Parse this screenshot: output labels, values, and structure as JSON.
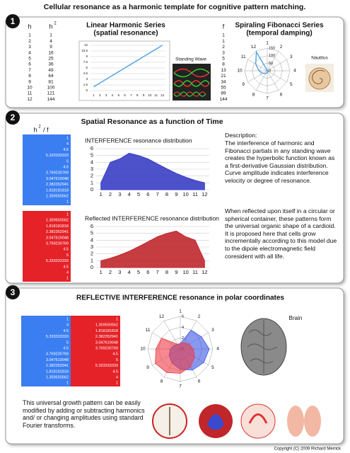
{
  "title": "Cellular resonance as a harmonic template for cognitive pattern matching.",
  "section_numbers": [
    1,
    2,
    3
  ],
  "panel1": {
    "h_header": "h",
    "h2_header": "h",
    "h2_sup": "2",
    "h": [
      1,
      2,
      3,
      4,
      5,
      6,
      7,
      8,
      9,
      10,
      11,
      12
    ],
    "h2": [
      1,
      4,
      9,
      16,
      25,
      36,
      49,
      64,
      81,
      100,
      121,
      144
    ],
    "f_header": "f",
    "f": [
      1,
      1,
      2,
      3,
      5,
      8,
      13,
      21,
      34,
      55,
      89,
      144
    ],
    "standing_wave": "Standing Wave",
    "nautilus": "Nautilus"
  },
  "panel2": {
    "title": "Spatial Resonance as a function of Time",
    "ratio_header": "h",
    "ratio_sup": "2",
    "ratio_rest": "/ f",
    "blue": [
      1,
      4,
      4.5,
      5.333333333,
      5,
      4.5,
      3.769230769,
      3.047619048,
      2.382352941,
      1.818181818,
      1.359550562,
      1
    ],
    "red": [
      1,
      1.359550562,
      1.818181818,
      2.382352941,
      3.047619048,
      3.769230769,
      4.5,
      5,
      5.333333333,
      4.5,
      4,
      1
    ],
    "description": [
      "Description:",
      "The interference of harmonic and Fibonacci partials in any standing wave creates the hyperbolic function known as a first-derivative Gaussian distribution. Curve amplitude indicates interference velocity or degree of resonance.",
      "When reflected upon itself in a circular or spherical container, these patterns form the universal organic shape of a cardioid.  It is proposed here that cells grow incrementally according to this model due to the dipole electromagnetic field coresident with all life."
    ]
  },
  "panel3": {
    "title": "REFLECTIVE INTERFERENCE resonance in polar coordinates",
    "blue": [
      1,
      4,
      4.5,
      5.333333333,
      5,
      4.5,
      3.769230769,
      3.047619048,
      2.382352941,
      1.818181818,
      1.359550562,
      1
    ],
    "red": [
      1,
      1.359550562,
      1.818181818,
      2.382352941,
      3.047619048,
      3.769230769,
      4.5,
      5,
      5.333333333,
      4.5,
      4,
      1
    ],
    "brain": "Brain",
    "caption": "This universal growth pattern can be easily modified by adding or subtracting harmonics and/ or changing amplitudes using standard Fourier transforms.",
    "copyright": "Copyright (C) 2009 Richard Merrick"
  },
  "chart_data": [
    {
      "type": "line",
      "title": "Linear Harmonic Series",
      "subtitle": "(spatial resonance)",
      "categories": [
        1,
        2,
        3,
        4,
        5,
        6,
        7,
        8,
        9,
        10,
        11,
        12
      ],
      "values": [
        1,
        2,
        3,
        4,
        5,
        6,
        7,
        8,
        9,
        10,
        11,
        12
      ],
      "color": "#5aa8e2",
      "ylim": [
        0,
        12
      ],
      "yticks": [
        0,
        1.5,
        3,
        4.5,
        6,
        7.5,
        9,
        10.5,
        12
      ],
      "grid": true
    },
    {
      "type": "radar",
      "title": "Spiraling Fibonacci Series",
      "subtitle": "(temporal damping)",
      "categories": [
        1,
        2,
        3,
        4,
        5,
        6,
        7,
        8,
        9,
        10,
        11,
        12
      ],
      "values": [
        1,
        1,
        2,
        3,
        5,
        8,
        13,
        21,
        34,
        55,
        89,
        144
      ],
      "color": "#5aa8e2",
      "rlim": [
        0,
        150
      ],
      "rticks": [
        0,
        50,
        100,
        150
      ]
    },
    {
      "type": "area",
      "title": "INTERFERENCE resonance distribution",
      "categories": [
        1,
        2,
        3,
        4,
        5,
        6,
        7,
        8,
        9,
        10,
        11,
        12
      ],
      "values": [
        1,
        4,
        4.5,
        5.333333333,
        5,
        4.5,
        3.769230769,
        3.047619048,
        2.382352941,
        1.818181818,
        1.359550562,
        1
      ],
      "color": "#3a3ec4",
      "ylim": [
        0,
        6
      ],
      "yticks": [
        0,
        1,
        2,
        3,
        4,
        5,
        6
      ],
      "grid": true
    },
    {
      "type": "area",
      "title": "Reflected INTERFERENCE resonance distribution",
      "categories": [
        1,
        2,
        3,
        4,
        5,
        6,
        7,
        8,
        9,
        10,
        11,
        12
      ],
      "values": [
        1,
        1.359550562,
        1.818181818,
        2.382352941,
        3.047619048,
        3.769230769,
        4.5,
        5,
        5.333333333,
        4.5,
        4,
        1
      ],
      "color": "#c0282c",
      "ylim": [
        0,
        6
      ],
      "yticks": [
        0,
        1,
        2,
        3,
        4,
        5,
        6
      ],
      "grid": true
    },
    {
      "type": "radar",
      "categories": [
        1,
        2,
        3,
        4,
        5,
        6,
        7,
        8,
        9,
        10,
        11,
        12
      ],
      "series": [
        {
          "color": "#3b55e6",
          "values": [
            1,
            4,
            4.5,
            5.333333333,
            5,
            4.5,
            3.769230769,
            3.047619048,
            2.382352941,
            1.818181818,
            1.359550562,
            1
          ]
        },
        {
          "color": "#ee3a44",
          "values": [
            1,
            1.359550562,
            1.818181818,
            2.382352941,
            3.047619048,
            3.769230769,
            4.5,
            5,
            5.333333333,
            4.5,
            4,
            1
          ]
        }
      ],
      "rlim": [
        0,
        6
      ],
      "rticks": [
        0,
        2,
        4,
        6
      ],
      "filled": true
    }
  ]
}
